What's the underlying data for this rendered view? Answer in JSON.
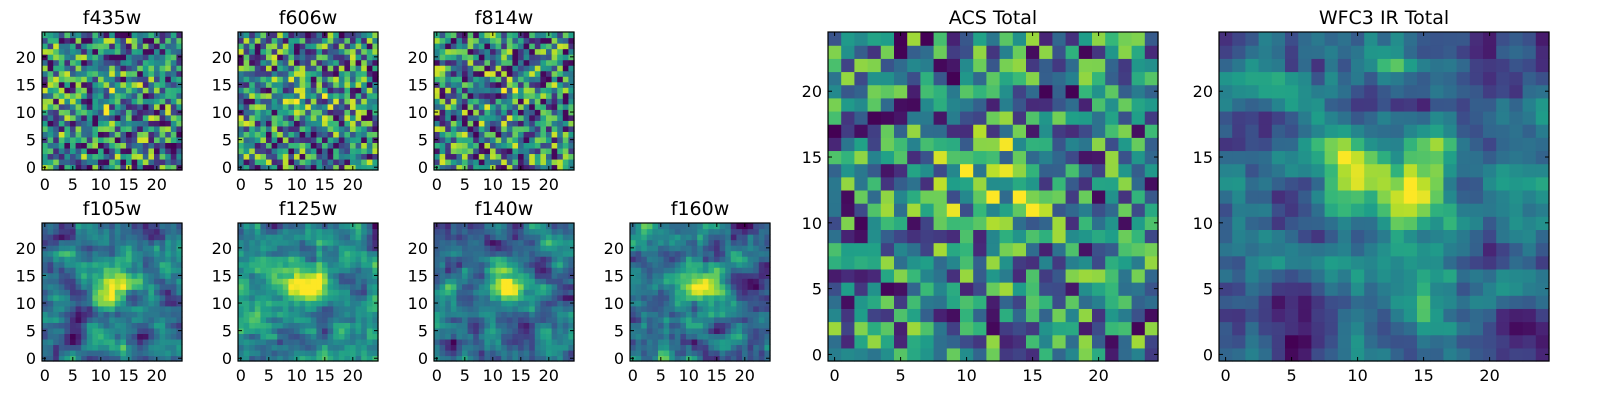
{
  "figure": {
    "colormap": "viridis",
    "frame_color": "#000000",
    "panels": [
      {
        "key": "f435w",
        "title": "f435w",
        "pattern": "noise",
        "seed": 11
      },
      {
        "key": "f606w",
        "title": "f606w",
        "pattern": "noise",
        "seed": 23
      },
      {
        "key": "f814w",
        "title": "f814w",
        "pattern": "noise",
        "seed": 37
      },
      {
        "key": "f105w",
        "title": "f105w",
        "pattern": "smooth-source",
        "seed": 41
      },
      {
        "key": "f125w",
        "title": "f125w",
        "pattern": "smooth-source",
        "seed": 53
      },
      {
        "key": "f140w",
        "title": "f140w",
        "pattern": "smooth-source",
        "seed": 67
      },
      {
        "key": "f160w",
        "title": "f160w",
        "pattern": "fine-source",
        "seed": 79
      },
      {
        "key": "acs",
        "title": "ACS Total",
        "pattern": "coarse-source",
        "seed": 83
      },
      {
        "key": "wfc3",
        "title": "WFC3 IR Total",
        "pattern": "smooth-source",
        "seed": 97
      }
    ]
  },
  "chart_data": [
    {
      "type": "heatmap",
      "title": "f435w",
      "xlim": [
        0,
        25
      ],
      "ylim": [
        0,
        25
      ],
      "xticks": [
        0,
        5,
        10,
        15,
        20
      ],
      "yticks": [
        0,
        5,
        10,
        15,
        20
      ],
      "grid": false,
      "colormap": "viridis"
    },
    {
      "type": "heatmap",
      "title": "f606w",
      "xlim": [
        0,
        25
      ],
      "ylim": [
        0,
        25
      ],
      "xticks": [
        0,
        5,
        10,
        15,
        20
      ],
      "yticks": [
        0,
        5,
        10,
        15,
        20
      ],
      "grid": false,
      "colormap": "viridis"
    },
    {
      "type": "heatmap",
      "title": "f814w",
      "xlim": [
        0,
        25
      ],
      "ylim": [
        0,
        25
      ],
      "xticks": [
        0,
        5,
        10,
        15,
        20
      ],
      "yticks": [
        0,
        5,
        10,
        15,
        20
      ],
      "grid": false,
      "colormap": "viridis"
    },
    {
      "type": "heatmap",
      "title": "f105w",
      "xlim": [
        0,
        25
      ],
      "ylim": [
        0,
        25
      ],
      "xticks": [
        0,
        5,
        10,
        15,
        20
      ],
      "yticks": [
        0,
        5,
        10,
        15,
        20
      ],
      "grid": false,
      "colormap": "viridis"
    },
    {
      "type": "heatmap",
      "title": "f125w",
      "xlim": [
        0,
        25
      ],
      "ylim": [
        0,
        25
      ],
      "xticks": [
        0,
        5,
        10,
        15,
        20
      ],
      "yticks": [
        0,
        5,
        10,
        15,
        20
      ],
      "grid": false,
      "colormap": "viridis"
    },
    {
      "type": "heatmap",
      "title": "f140w",
      "xlim": [
        0,
        25
      ],
      "ylim": [
        0,
        25
      ],
      "xticks": [
        0,
        5,
        10,
        15,
        20
      ],
      "yticks": [
        0,
        5,
        10,
        15,
        20
      ],
      "grid": false,
      "colormap": "viridis"
    },
    {
      "type": "heatmap",
      "title": "f160w",
      "xlim": [
        0,
        25
      ],
      "ylim": [
        0,
        25
      ],
      "xticks": [
        0,
        5,
        10,
        15,
        20
      ],
      "yticks": [
        0,
        5,
        10,
        15,
        20
      ],
      "grid": false,
      "colormap": "viridis"
    },
    {
      "type": "heatmap",
      "title": "ACS Total",
      "xlim": [
        0,
        25
      ],
      "ylim": [
        0,
        25
      ],
      "xticks": [
        0,
        5,
        10,
        15,
        20
      ],
      "yticks": [
        0,
        5,
        10,
        15,
        20
      ],
      "grid": false,
      "colormap": "viridis"
    },
    {
      "type": "heatmap",
      "title": "WFC3 IR Total",
      "xlim": [
        0,
        25
      ],
      "ylim": [
        0,
        25
      ],
      "xticks": [
        0,
        5,
        10,
        15,
        20
      ],
      "yticks": [
        0,
        5,
        10,
        15,
        20
      ],
      "grid": false,
      "colormap": "viridis"
    }
  ]
}
